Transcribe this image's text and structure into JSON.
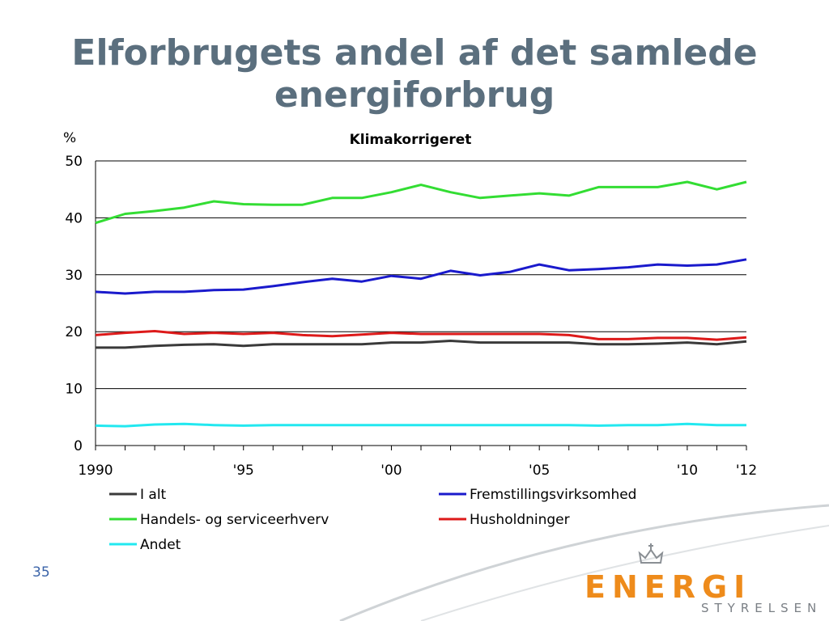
{
  "slide": {
    "title_line1": "Elforbrugets andel af det samlede",
    "title_line2": "energiforbrug",
    "page_number": "35"
  },
  "logo": {
    "main": "ENERGI",
    "sub": "STYRELSEN"
  },
  "colors": {
    "title": "#5b6f7e",
    "logo_orange": "#ee8b1b",
    "logo_gray": "#7a7f85",
    "page_number": "#3a63a8"
  },
  "chart_data": {
    "type": "line",
    "title": "Klimakorrigeret",
    "ylabel": "%",
    "ylim": [
      0,
      50
    ],
    "yticks": [
      0,
      10,
      20,
      30,
      40,
      50
    ],
    "grid": true,
    "x": [
      1990,
      1991,
      1992,
      1993,
      1994,
      1995,
      1996,
      1997,
      1998,
      1999,
      2000,
      2001,
      2002,
      2003,
      2004,
      2005,
      2006,
      2007,
      2008,
      2009,
      2010,
      2011,
      2012
    ],
    "xtick_values": [
      1990,
      1995,
      2000,
      2005,
      2010,
      2012
    ],
    "xtick_labels": [
      "1990",
      "'95",
      "'00",
      "'05",
      "'10",
      "'12"
    ],
    "legend_position": "bottom",
    "series": [
      {
        "name": "I alt",
        "color": "#3a3a3a",
        "values": [
          17.2,
          17.2,
          17.5,
          17.7,
          17.8,
          17.5,
          17.8,
          17.8,
          17.8,
          17.8,
          18.1,
          18.1,
          18.4,
          18.1,
          18.1,
          18.1,
          18.1,
          17.8,
          17.8,
          17.9,
          18.1,
          17.8,
          18.3
        ]
      },
      {
        "name": "Fremstillingsvirksomhed",
        "color": "#1a1acc",
        "values": [
          27.0,
          26.7,
          27.0,
          27.0,
          27.3,
          27.4,
          28.0,
          28.7,
          29.3,
          28.8,
          29.8,
          29.3,
          30.7,
          29.9,
          30.5,
          31.8,
          30.8,
          31.0,
          31.3,
          31.8,
          31.6,
          31.8,
          32.7
        ]
      },
      {
        "name": "Handels- og serviceerhverv",
        "color": "#33dd33",
        "values": [
          39.1,
          40.7,
          41.2,
          41.8,
          42.9,
          42.4,
          42.3,
          42.3,
          43.5,
          43.5,
          44.5,
          45.8,
          44.5,
          43.5,
          43.9,
          44.3,
          43.9,
          45.4,
          45.4,
          45.4,
          46.3,
          45.0,
          46.3
        ]
      },
      {
        "name": "Husholdninger",
        "color": "#dd1a1a",
        "values": [
          19.4,
          19.8,
          20.1,
          19.6,
          19.8,
          19.6,
          19.8,
          19.4,
          19.2,
          19.5,
          19.8,
          19.6,
          19.6,
          19.6,
          19.6,
          19.6,
          19.4,
          18.7,
          18.7,
          18.9,
          18.9,
          18.6,
          19.0
        ]
      },
      {
        "name": "Andet",
        "color": "#22e8f0",
        "values": [
          3.5,
          3.4,
          3.7,
          3.8,
          3.6,
          3.5,
          3.6,
          3.6,
          3.6,
          3.6,
          3.6,
          3.6,
          3.6,
          3.6,
          3.6,
          3.6,
          3.6,
          3.5,
          3.6,
          3.6,
          3.8,
          3.6,
          3.6
        ]
      }
    ]
  }
}
